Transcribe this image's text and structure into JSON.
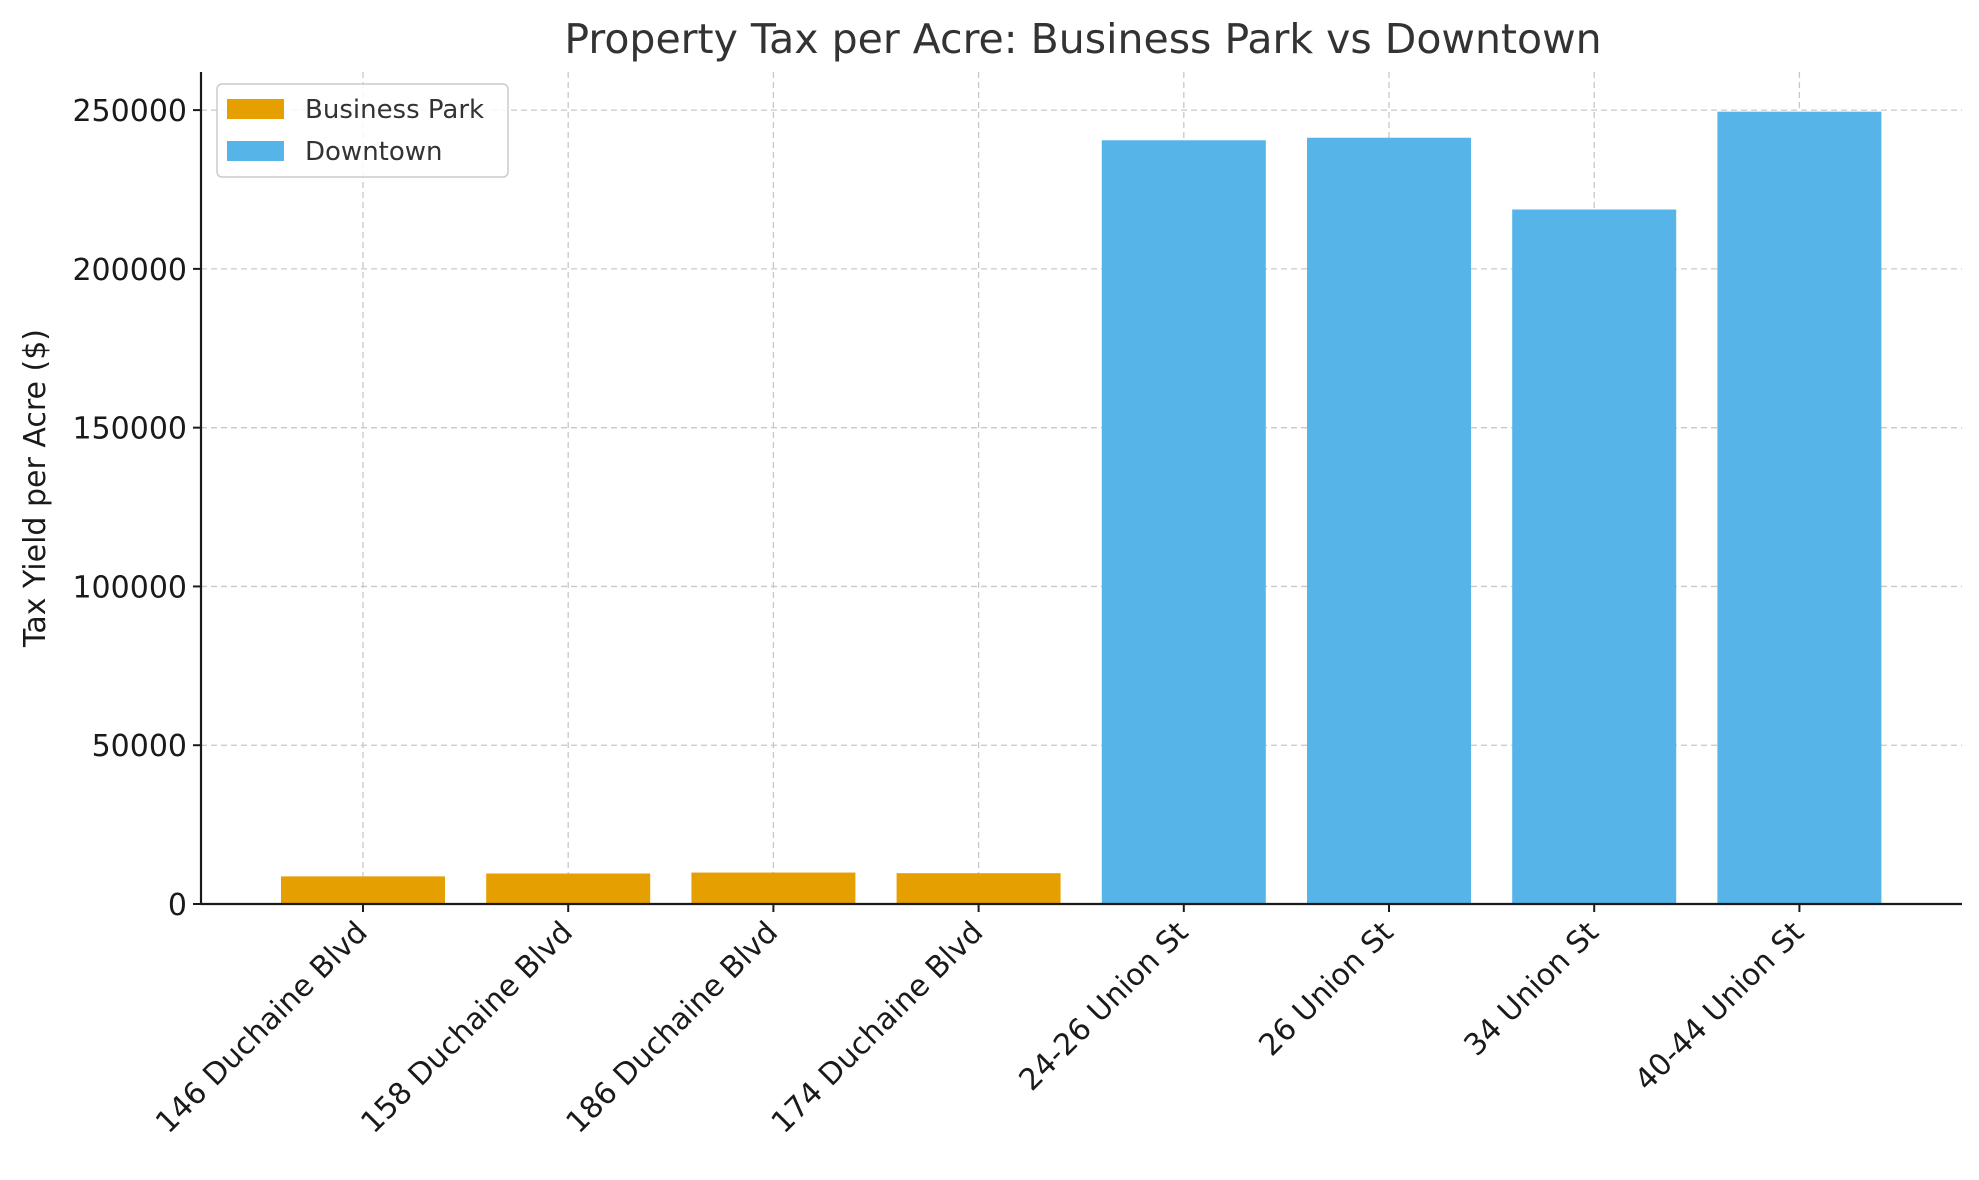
{
  "chart_data": {
    "type": "bar",
    "title": "Property Tax per Acre: Business Park vs Downtown",
    "xlabel": "",
    "ylabel": "Tax Yield per Acre ($)",
    "ylim": [
      0,
      262000
    ],
    "yticks": [
      0,
      50000,
      100000,
      150000,
      200000,
      250000
    ],
    "grid": true,
    "legend_position": "top-left",
    "categories": [
      "146 Duchaine Blvd",
      "158 Duchaine Blvd",
      "186 Duchaine Blvd",
      "174 Duchaine Blvd",
      "24-26 Union St",
      "26 Union St",
      "34 Union St",
      "40-44 Union St"
    ],
    "series": [
      {
        "name": "Business Park",
        "color": "#E69F00",
        "values": [
          8700,
          9600,
          9900,
          9700,
          null,
          null,
          null,
          null
        ]
      },
      {
        "name": "Downtown",
        "color": "#56B4E9",
        "values": [
          null,
          null,
          null,
          null,
          240500,
          241300,
          218700,
          249500
        ]
      }
    ]
  }
}
